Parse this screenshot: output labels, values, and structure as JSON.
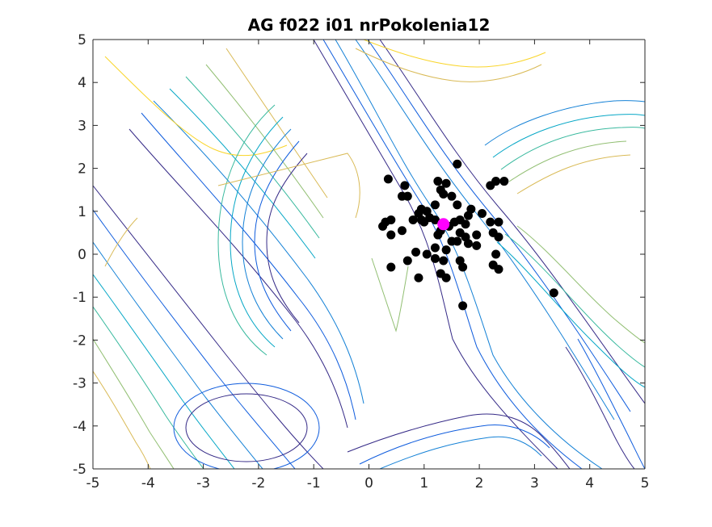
{
  "chart_data": {
    "type": "scatter",
    "title": "AG f022 i01 nrPokolenia12",
    "xlabel": "",
    "ylabel": "",
    "xlim": [
      -5,
      5
    ],
    "ylim": [
      -5,
      5
    ],
    "x_ticks": [
      "-5",
      "-4",
      "-3",
      "-2",
      "-1",
      "0",
      "1",
      "2",
      "3",
      "4",
      "5"
    ],
    "y_ticks": [
      "5",
      "4",
      "3",
      "2",
      "1",
      "0",
      "-1",
      "-2",
      "-3",
      "-4",
      "-5"
    ],
    "grid": false,
    "background": "contour plot",
    "series": [
      {
        "marker": "filled-circle",
        "color": "#000000",
        "points": [
          [
            1.6,
            2.1
          ],
          [
            0.35,
            1.75
          ],
          [
            0.65,
            1.6
          ],
          [
            1.25,
            1.7
          ],
          [
            1.4,
            1.65
          ],
          [
            2.3,
            1.7
          ],
          [
            2.45,
            1.7
          ],
          [
            2.2,
            1.6
          ],
          [
            1.3,
            1.5
          ],
          [
            1.35,
            1.4
          ],
          [
            1.5,
            1.35
          ],
          [
            0.6,
            1.35
          ],
          [
            0.7,
            1.35
          ],
          [
            0.95,
            1.05
          ],
          [
            1.05,
            1.0
          ],
          [
            1.6,
            1.15
          ],
          [
            1.85,
            1.05
          ],
          [
            1.8,
            0.9
          ],
          [
            2.05,
            0.95
          ],
          [
            1.2,
            1.15
          ],
          [
            0.9,
            0.95
          ],
          [
            0.4,
            0.8
          ],
          [
            0.3,
            0.75
          ],
          [
            0.25,
            0.65
          ],
          [
            0.8,
            0.8
          ],
          [
            0.95,
            0.8
          ],
          [
            1.0,
            0.75
          ],
          [
            1.1,
            0.85
          ],
          [
            1.2,
            0.8
          ],
          [
            1.55,
            0.75
          ],
          [
            1.65,
            0.8
          ],
          [
            1.75,
            0.7
          ],
          [
            1.45,
            0.65
          ],
          [
            1.3,
            0.55
          ],
          [
            2.2,
            0.75
          ],
          [
            2.35,
            0.75
          ],
          [
            0.6,
            0.55
          ],
          [
            0.4,
            0.45
          ],
          [
            1.25,
            0.45
          ],
          [
            1.65,
            0.5
          ],
          [
            1.75,
            0.4
          ],
          [
            1.95,
            0.45
          ],
          [
            2.25,
            0.5
          ],
          [
            2.35,
            0.4
          ],
          [
            1.5,
            0.3
          ],
          [
            1.6,
            0.3
          ],
          [
            1.8,
            0.25
          ],
          [
            1.95,
            0.2
          ],
          [
            1.2,
            0.15
          ],
          [
            1.4,
            0.1
          ],
          [
            2.3,
            0.0
          ],
          [
            0.85,
            0.05
          ],
          [
            1.05,
            0.0
          ],
          [
            1.2,
            -0.1
          ],
          [
            1.35,
            -0.15
          ],
          [
            1.65,
            -0.15
          ],
          [
            2.25,
            -0.25
          ],
          [
            2.35,
            -0.35
          ],
          [
            0.4,
            -0.3
          ],
          [
            0.9,
            -0.55
          ],
          [
            1.3,
            -0.45
          ],
          [
            1.4,
            -0.55
          ],
          [
            1.7,
            -0.3
          ],
          [
            0.7,
            -0.15
          ],
          [
            3.35,
            -0.9
          ],
          [
            1.7,
            -1.2
          ]
        ]
      },
      {
        "marker": "filled-circle",
        "color": "#ff00ff",
        "points": [
          [
            1.35,
            0.7
          ]
        ]
      }
    ]
  }
}
